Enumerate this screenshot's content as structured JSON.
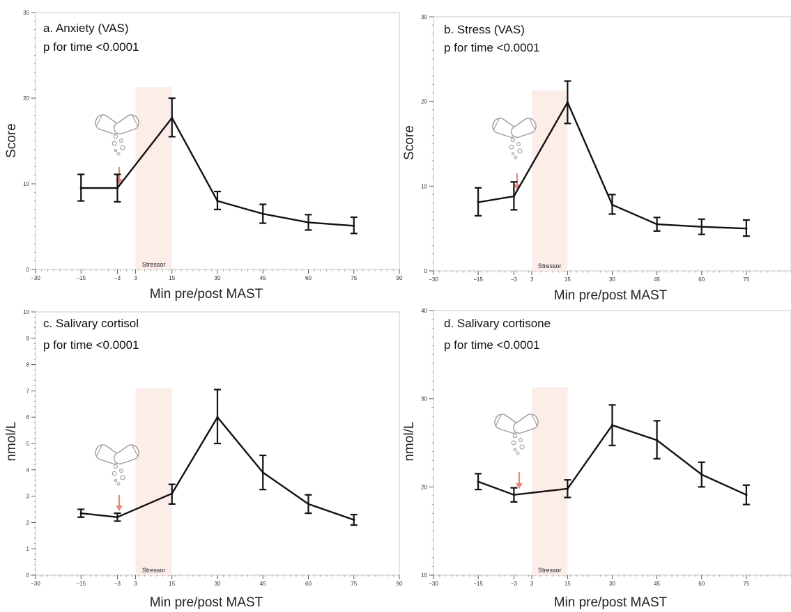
{
  "chart_data": [
    {
      "type": "line",
      "title": "a. Anxiety (VAS)",
      "subtitle": "p for time <0.0001",
      "xlabel": "Min pre/post MAST",
      "ylabel": "Score",
      "xlim": [
        -30,
        90
      ],
      "ylim": [
        0,
        30
      ],
      "xticks": [
        -30,
        -15,
        -3,
        3,
        15,
        30,
        45,
        60,
        75,
        90
      ],
      "xtick_labels": [
        "−30",
        "−15",
        "−3",
        "3",
        "15",
        "30",
        "45",
        "60",
        "75",
        "90"
      ],
      "yticks": [
        0,
        10,
        20,
        30
      ],
      "ytick_labels": [
        "0",
        "10",
        "20",
        "30"
      ],
      "annotation": "Stressor",
      "stressor_window": [
        3,
        15
      ],
      "x": [
        -15,
        -3,
        15,
        30,
        45,
        60,
        75
      ],
      "values": [
        9.5,
        9.5,
        17.7,
        8.0,
        6.5,
        5.5,
        5.1
      ],
      "err_low": [
        8.0,
        7.9,
        15.5,
        7.0,
        5.4,
        4.6,
        4.2
      ],
      "err_high": [
        11.1,
        11.1,
        20.0,
        9.1,
        7.6,
        6.4,
        6.1
      ],
      "grid": false
    },
    {
      "type": "line",
      "title": "b. Stress (VAS)",
      "subtitle": "p for time <0.0001",
      "xlabel": "Min pre/post MAST",
      "ylabel": "Score",
      "xlim": [
        -30,
        90
      ],
      "ylim": [
        0,
        30
      ],
      "xticks": [
        -30,
        -15,
        -3,
        3,
        15,
        30,
        45,
        60,
        75
      ],
      "xtick_labels": [
        "−30",
        "−15",
        "−3",
        "3",
        "15",
        "30",
        "45",
        "60",
        "75"
      ],
      "yticks": [
        0,
        10,
        20,
        30
      ],
      "ytick_labels": [
        "0",
        "10",
        "20",
        "30"
      ],
      "annotation": "Stressor",
      "stressor_window": [
        3,
        15
      ],
      "x": [
        -15,
        -3,
        15,
        30,
        45,
        60,
        75
      ],
      "values": [
        8.1,
        8.8,
        19.9,
        7.8,
        5.5,
        5.2,
        5.0
      ],
      "err_low": [
        6.5,
        7.2,
        17.4,
        6.7,
        4.7,
        4.3,
        4.1
      ],
      "err_high": [
        9.8,
        10.5,
        22.4,
        9.0,
        6.3,
        6.1,
        6.0
      ],
      "grid": false
    },
    {
      "type": "line",
      "title": "c. Salivary cortisol",
      "subtitle": "p for time <0.0001",
      "xlabel": "Min pre/post MAST",
      "ylabel": "nmol/L",
      "xlim": [
        -30,
        90
      ],
      "ylim": [
        0,
        10
      ],
      "xticks": [
        -30,
        -15,
        -3,
        3,
        15,
        30,
        45,
        60,
        75,
        90
      ],
      "xtick_labels": [
        "−30",
        "−15",
        "−3",
        "3",
        "15",
        "30",
        "45",
        "60",
        "75",
        "90"
      ],
      "yticks": [
        0,
        1,
        2,
        3,
        4,
        5,
        6,
        7,
        8,
        9,
        10
      ],
      "ytick_labels": [
        "0",
        "1",
        "2",
        "3",
        "4",
        "5",
        "6",
        "7",
        "8",
        "9",
        "10"
      ],
      "annotation": "Stressor",
      "stressor_window": [
        3,
        15
      ],
      "x": [
        -15,
        -3,
        15,
        30,
        45,
        60,
        75
      ],
      "values": [
        2.35,
        2.2,
        3.1,
        6.0,
        3.9,
        2.7,
        2.1
      ],
      "err_low": [
        2.2,
        2.05,
        2.7,
        5.0,
        3.25,
        2.35,
        1.9
      ],
      "err_high": [
        2.5,
        2.35,
        3.45,
        7.05,
        4.55,
        3.05,
        2.3
      ],
      "grid": false
    },
    {
      "type": "line",
      "title": "d. Salivary cortisone",
      "subtitle": "p for time <0.0001",
      "xlabel": "Min pre/post MAST",
      "ylabel": "nmol/L",
      "xlim": [
        -30,
        90
      ],
      "ylim": [
        10,
        40
      ],
      "xticks": [
        -30,
        -15,
        -3,
        3,
        15,
        30,
        45,
        60,
        75
      ],
      "xtick_labels": [
        "−30",
        "−15",
        "−3",
        "3",
        "15",
        "30",
        "45",
        "60",
        "75"
      ],
      "yticks": [
        10,
        20,
        30,
        40
      ],
      "ytick_labels": [
        "10",
        "20",
        "30",
        "40"
      ],
      "annotation": "Stressor",
      "stressor_window": [
        3,
        15
      ],
      "x": [
        -15,
        -3,
        15,
        30,
        45,
        60,
        75
      ],
      "values": [
        20.6,
        19.1,
        19.8,
        27.0,
        25.3,
        21.4,
        19.1
      ],
      "err_low": [
        19.7,
        18.3,
        18.8,
        24.7,
        23.2,
        20.0,
        18.0
      ],
      "err_high": [
        21.5,
        19.9,
        20.8,
        29.3,
        27.5,
        22.8,
        20.2
      ],
      "grid": false
    }
  ],
  "colors": {
    "line": "#111111",
    "stressor_band": "#fbe9e4",
    "arrow": "#e8877a",
    "pill_outline": "#9a9a9a",
    "frame": "#c8c8c8"
  },
  "icons": [
    "capsule-icon",
    "arrow-down-icon"
  ]
}
